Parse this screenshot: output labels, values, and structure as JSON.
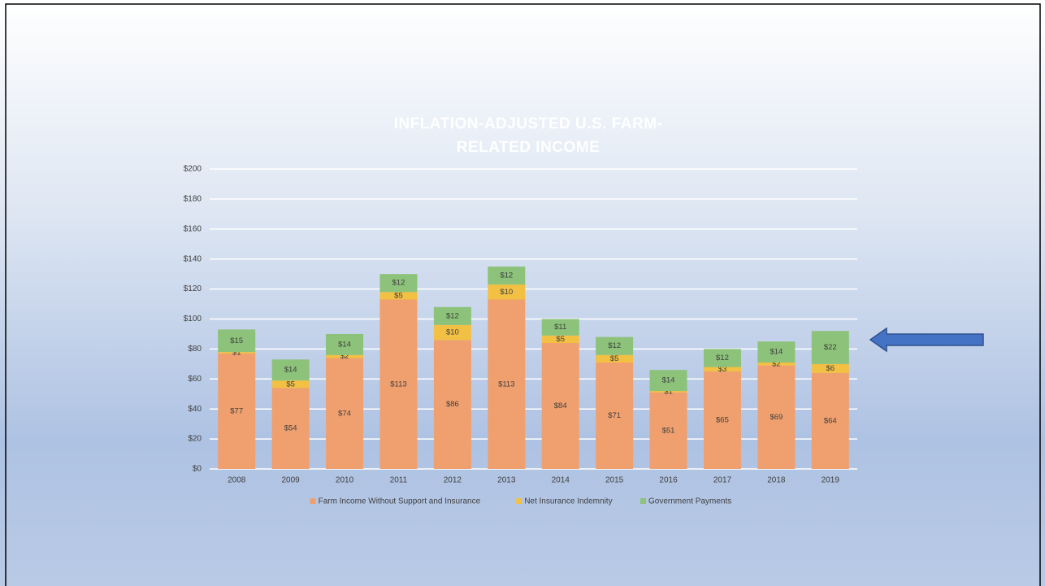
{
  "chart_data": {
    "type": "stacked_bar",
    "title": "INFLATION-ADJUSTED U.S. FARM-RELATED INCOME",
    "categories": [
      "2008",
      "2009",
      "2010",
      "2011",
      "2012",
      "2013",
      "2014",
      "2015",
      "2016",
      "2017",
      "2018",
      "2019"
    ],
    "series": [
      {
        "name": "Farm Income Without Support and Insurance",
        "color": "#f0a06e",
        "values": [
          77,
          54,
          74,
          113,
          86,
          113,
          84,
          71,
          51,
          65,
          69,
          64
        ],
        "value_labels": [
          "$77",
          "$54",
          "$74",
          "$113",
          "$86",
          "$113",
          "$84",
          "$71",
          "$51",
          "$65",
          "$69",
          "$64"
        ]
      },
      {
        "name": "Net Insurance Indemnity",
        "color": "#f2c043",
        "values": [
          1,
          5,
          2,
          5,
          10,
          10,
          5,
          5,
          1,
          3,
          2,
          6
        ],
        "value_labels": [
          "$1",
          "$5",
          "$2",
          "$5",
          "$10",
          "$10",
          "$5",
          "$5",
          "$1",
          "$3",
          "$2",
          "$6"
        ]
      },
      {
        "name": "Government Payments",
        "color": "#8cc279",
        "values": [
          15,
          14,
          14,
          12,
          12,
          12,
          11,
          12,
          14,
          12,
          14,
          22
        ],
        "value_labels": [
          "$15",
          "$14",
          "$14",
          "$12",
          "$12",
          "$12",
          "$11",
          "$12",
          "$14",
          "$12",
          "$14",
          "$22"
        ]
      }
    ],
    "ylim": [
      0,
      200
    ],
    "yticks": [
      {
        "value": 0,
        "label": "$0"
      },
      {
        "value": 20,
        "label": "$20"
      },
      {
        "value": 40,
        "label": "$40"
      },
      {
        "value": 60,
        "label": "$60"
      },
      {
        "value": 80,
        "label": "$80"
      },
      {
        "value": 100,
        "label": "$100"
      },
      {
        "value": 120,
        "label": "$120"
      },
      {
        "value": 140,
        "label": "$140"
      },
      {
        "value": 160,
        "label": "$160"
      },
      {
        "value": 180,
        "label": "$180"
      },
      {
        "value": 200,
        "label": "$200"
      }
    ],
    "grid": true,
    "legend": "bottom"
  }
}
